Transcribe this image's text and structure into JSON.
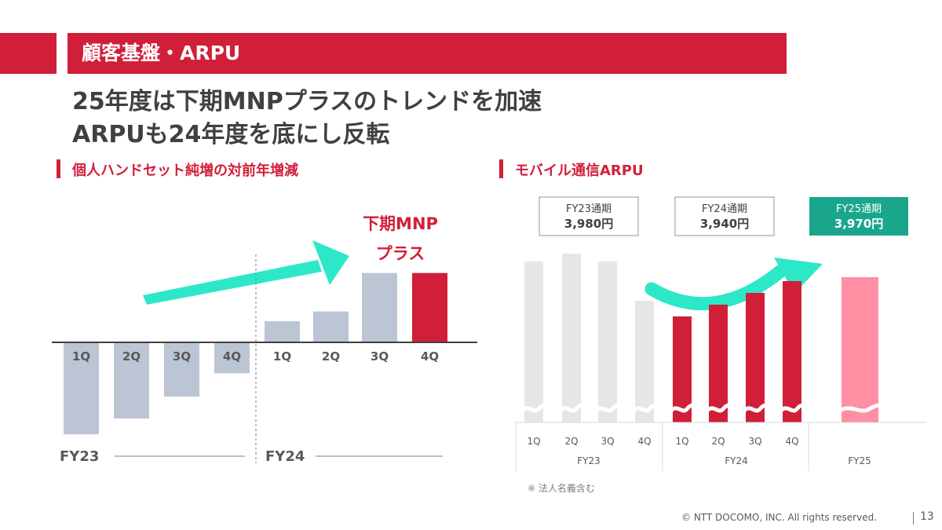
{
  "header": {
    "title": "顧客基盤・ARPU",
    "headline_line1": "25年度は下期MNPプラスのトレンドを加速",
    "headline_line2": "ARPUも24年度を底にし反転"
  },
  "footer": {
    "copyright": "© NTT DOCOMO, INC.  All rights reserved.",
    "page": "13"
  },
  "colors": {
    "brand_red": "#d11f3a",
    "gray_bar": "#bcc5d4",
    "light_bar": "#e6e6e6",
    "pink_bar": "#ff8fa3",
    "teal": "#2ce8c8",
    "teal_box": "#1aa68d"
  },
  "chart_data": [
    {
      "type": "bar",
      "title": "個人ハンドセット純増の対前年増減",
      "categories": [
        "1Q",
        "2Q",
        "3Q",
        "4Q",
        "1Q",
        "2Q",
        "3Q",
        "4Q"
      ],
      "groups": [
        {
          "name": "FY23",
          "categories": [
            "1Q",
            "2Q",
            "3Q",
            "4Q"
          ],
          "values": [
            -122,
            -101,
            -72,
            -41
          ]
        },
        {
          "name": "FY24",
          "categories": [
            "1Q",
            "2Q",
            "3Q",
            "4Q"
          ],
          "values": [
            28,
            41,
            92,
            92
          ]
        }
      ],
      "highlight_index": 7,
      "annotation_line1": "下期MNP",
      "annotation_line2": "プラス",
      "ylim": [
        -130,
        110
      ],
      "axis": "unlabeled (relative values, zero baseline)"
    },
    {
      "type": "bar",
      "title": "モバイル通信ARPU",
      "note": "※ 法人名義含む",
      "categories": [
        "1Q",
        "2Q",
        "3Q",
        "4Q",
        "1Q",
        "2Q",
        "3Q",
        "4Q",
        "FY25"
      ],
      "groups": [
        {
          "name": "FY23",
          "categories": [
            "1Q",
            "2Q",
            "3Q",
            "4Q"
          ],
          "values": [
            3990,
            4000,
            3990,
            3940
          ]
        },
        {
          "name": "FY24",
          "categories": [
            "1Q",
            "2Q",
            "3Q",
            "4Q"
          ],
          "values": [
            3920,
            3935,
            3950,
            3965
          ]
        },
        {
          "name": "FY25",
          "categories": [
            ""
          ],
          "values": [
            3970
          ]
        }
      ],
      "fy_totals": [
        {
          "label": "FY23通期",
          "value": "3,980円"
        },
        {
          "label": "FY24通期",
          "value": "3,940円"
        },
        {
          "label": "FY25通期",
          "value": "3,970円"
        }
      ],
      "axis_break": true,
      "unit": "円"
    }
  ]
}
